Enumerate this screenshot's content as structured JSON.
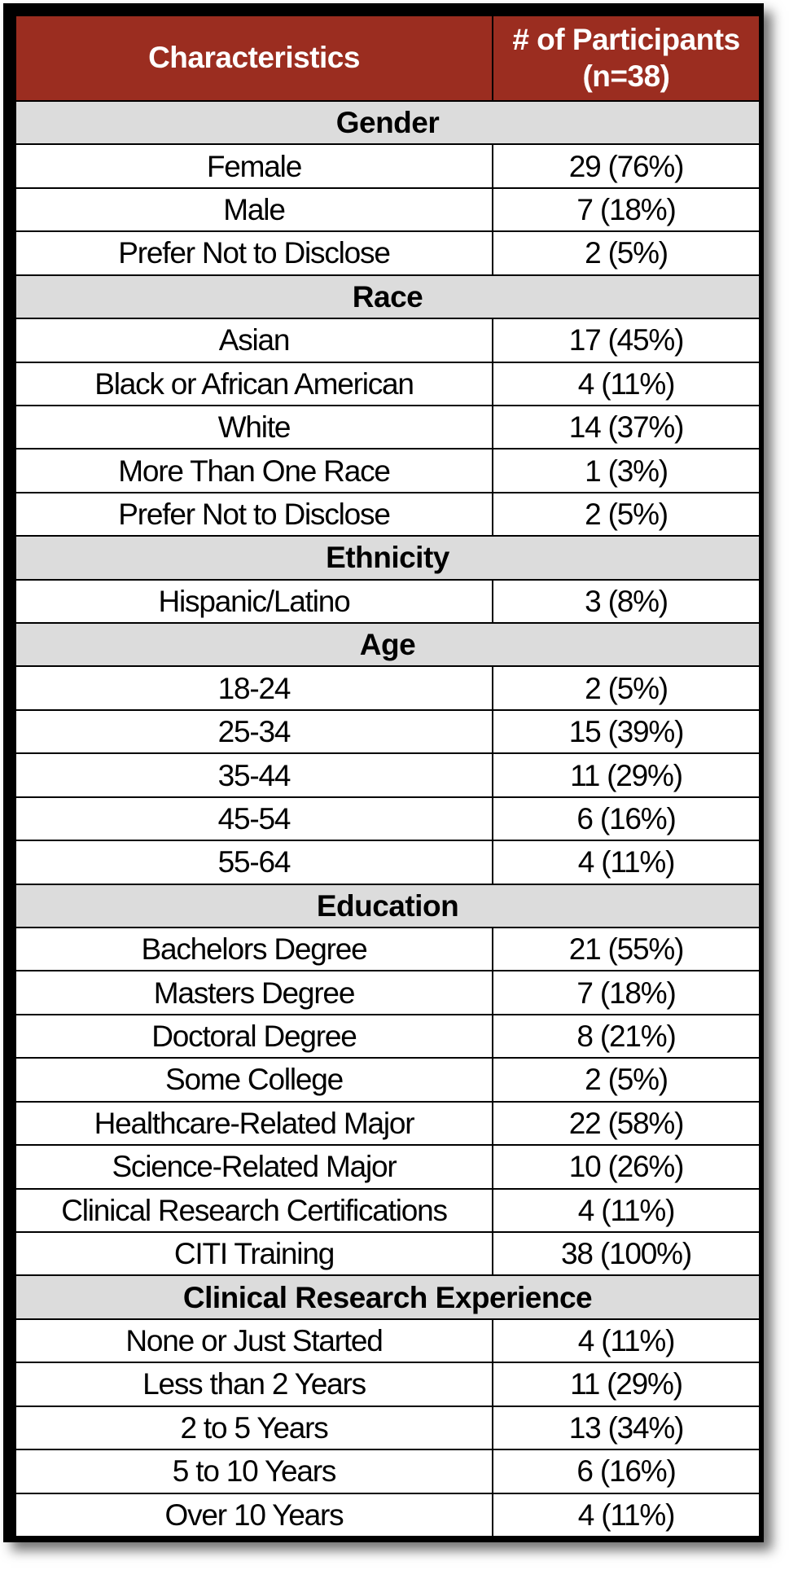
{
  "header": {
    "characteristics": "Characteristics",
    "participants": "# of Participants (n=38)"
  },
  "sections": [
    {
      "title": "Gender",
      "rows": [
        {
          "label": "Female",
          "value": "29 (76%)"
        },
        {
          "label": "Male",
          "value": "7 (18%)"
        },
        {
          "label": "Prefer Not to Disclose",
          "value": "2 (5%)"
        }
      ]
    },
    {
      "title": "Race",
      "rows": [
        {
          "label": "Asian",
          "value": "17 (45%)"
        },
        {
          "label": "Black or African American",
          "value": "4 (11%)"
        },
        {
          "label": "White",
          "value": "14 (37%)"
        },
        {
          "label": "More Than One Race",
          "value": "1 (3%)"
        },
        {
          "label": "Prefer Not to Disclose",
          "value": "2 (5%)"
        }
      ]
    },
    {
      "title": "Ethnicity",
      "rows": [
        {
          "label": "Hispanic/Latino",
          "value": "3 (8%)"
        }
      ]
    },
    {
      "title": "Age",
      "rows": [
        {
          "label": "18-24",
          "value": "2 (5%)"
        },
        {
          "label": "25-34",
          "value": "15 (39%)"
        },
        {
          "label": "35-44",
          "value": "11 (29%)"
        },
        {
          "label": "45-54",
          "value": "6 (16%)"
        },
        {
          "label": "55-64",
          "value": "4 (11%)"
        }
      ]
    },
    {
      "title": "Education",
      "rows": [
        {
          "label": "Bachelors Degree",
          "value": "21 (55%)"
        },
        {
          "label": "Masters Degree",
          "value": "7 (18%)"
        },
        {
          "label": "Doctoral Degree",
          "value": "8 (21%)"
        },
        {
          "label": "Some College",
          "value": "2 (5%)"
        },
        {
          "label": "Healthcare-Related Major",
          "value": "22 (58%)"
        },
        {
          "label": "Science-Related Major",
          "value": "10 (26%)"
        },
        {
          "label": "Clinical Research Certifications",
          "value": "4 (11%)"
        },
        {
          "label": "CITI Training",
          "value": "38 (100%)"
        }
      ]
    },
    {
      "title": "Clinical Research Experience",
      "rows": [
        {
          "label": "None or Just Started",
          "value": "4 (11%)"
        },
        {
          "label": "Less than 2 Years",
          "value": "11 (29%)"
        },
        {
          "label": "2 to 5 Years",
          "value": "13 (34%)"
        },
        {
          "label": "5 to 10 Years",
          "value": "6 (16%)"
        },
        {
          "label": "Over 10 Years",
          "value": "4 (11%)"
        }
      ]
    }
  ],
  "colors": {
    "header_bg": "#9b2d20",
    "header_text": "#ffffff",
    "section_bg": "#dcdcdc",
    "border": "#000000"
  }
}
